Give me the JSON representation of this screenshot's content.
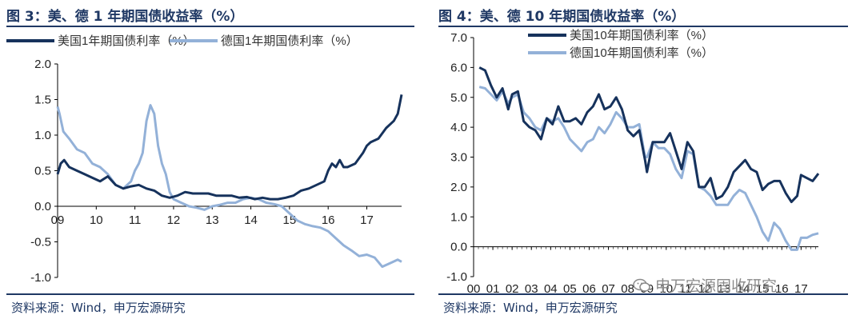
{
  "watermark": "申万宏源固收研究",
  "chart_data": [
    {
      "type": "line",
      "title": "图 3：美、德 1 年期国债收益率（%）",
      "source": "资料来源：Wind，申万宏源研究",
      "xlabel": "",
      "ylabel": "",
      "xlim": [
        2009,
        2017.9
      ],
      "ylim": [
        -1.0,
        2.0
      ],
      "x_ticks": [
        2009,
        2010,
        2011,
        2012,
        2013,
        2014,
        2015,
        2016,
        2017
      ],
      "x_tick_labels": [
        "09",
        "10",
        "11",
        "12",
        "13",
        "14",
        "15",
        "16",
        "17"
      ],
      "y_ticks": [
        -1.0,
        -0.5,
        0.0,
        0.5,
        1.0,
        1.5,
        2.0
      ],
      "y_tick_labels": [
        "-1.0",
        "-0.5",
        "0.0",
        "0.5",
        "1.0",
        "1.5",
        "2.0"
      ],
      "legend_position": "top",
      "series": [
        {
          "name": "美国1年期国债利率（%）",
          "color": "#16325c",
          "x": [
            2009.0,
            2009.08,
            2009.17,
            2009.3,
            2009.5,
            2009.7,
            2009.9,
            2010.1,
            2010.3,
            2010.5,
            2010.7,
            2010.9,
            2011.1,
            2011.3,
            2011.5,
            2011.7,
            2011.9,
            2012.1,
            2012.3,
            2012.5,
            2012.7,
            2012.9,
            2013.1,
            2013.3,
            2013.5,
            2013.7,
            2013.9,
            2014.1,
            2014.3,
            2014.5,
            2014.7,
            2014.9,
            2015.1,
            2015.3,
            2015.5,
            2015.7,
            2015.9,
            2016.0,
            2016.1,
            2016.2,
            2016.3,
            2016.4,
            2016.5,
            2016.7,
            2016.9,
            2017.0,
            2017.1,
            2017.3,
            2017.5,
            2017.7,
            2017.8,
            2017.9
          ],
          "values": [
            0.45,
            0.6,
            0.65,
            0.55,
            0.5,
            0.45,
            0.4,
            0.35,
            0.42,
            0.3,
            0.25,
            0.28,
            0.3,
            0.25,
            0.22,
            0.15,
            0.12,
            0.15,
            0.2,
            0.18,
            0.18,
            0.18,
            0.15,
            0.15,
            0.15,
            0.12,
            0.13,
            0.1,
            0.12,
            0.1,
            0.1,
            0.12,
            0.15,
            0.22,
            0.25,
            0.3,
            0.35,
            0.5,
            0.6,
            0.55,
            0.65,
            0.55,
            0.55,
            0.6,
            0.75,
            0.85,
            0.9,
            0.95,
            1.1,
            1.2,
            1.3,
            1.57
          ]
        },
        {
          "name": "德国1年期国债利率（%）",
          "color": "#93b1d8",
          "x": [
            2009.0,
            2009.05,
            2009.15,
            2009.3,
            2009.5,
            2009.7,
            2009.9,
            2010.1,
            2010.3,
            2010.5,
            2010.7,
            2010.9,
            2011.0,
            2011.1,
            2011.2,
            2011.3,
            2011.4,
            2011.5,
            2011.6,
            2011.7,
            2011.8,
            2011.9,
            2012.0,
            2012.2,
            2012.4,
            2012.6,
            2012.8,
            2013.0,
            2013.2,
            2013.4,
            2013.6,
            2013.8,
            2014.0,
            2014.2,
            2014.4,
            2014.6,
            2014.8,
            2015.0,
            2015.2,
            2015.4,
            2015.6,
            2015.8,
            2016.0,
            2016.2,
            2016.4,
            2016.6,
            2016.8,
            2017.0,
            2017.2,
            2017.4,
            2017.6,
            2017.8,
            2017.9
          ],
          "values": [
            1.4,
            1.3,
            1.05,
            0.95,
            0.8,
            0.75,
            0.6,
            0.55,
            0.45,
            0.3,
            0.25,
            0.35,
            0.5,
            0.6,
            0.75,
            1.2,
            1.42,
            1.3,
            0.85,
            0.6,
            0.45,
            0.2,
            0.1,
            0.05,
            0.0,
            -0.02,
            -0.05,
            0.0,
            0.02,
            0.05,
            0.05,
            0.1,
            0.12,
            0.1,
            0.05,
            0.03,
            0.0,
            -0.1,
            -0.2,
            -0.25,
            -0.28,
            -0.3,
            -0.35,
            -0.45,
            -0.55,
            -0.62,
            -0.7,
            -0.68,
            -0.72,
            -0.85,
            -0.8,
            -0.75,
            -0.78
          ]
        }
      ]
    },
    {
      "type": "line",
      "title": "图 4：美、德 10 年期国债收益率（%）",
      "source": "资料来源：Wind，申万宏源研究",
      "xlabel": "",
      "ylabel": "",
      "xlim": [
        2000,
        2017.9
      ],
      "ylim": [
        -1.0,
        7.0
      ],
      "x_ticks": [
        2000,
        2001,
        2002,
        2003,
        2004,
        2005,
        2006,
        2007,
        2008,
        2009,
        2010,
        2011,
        2012,
        2013,
        2014,
        2015,
        2016,
        2017
      ],
      "x_tick_labels": [
        "00",
        "01",
        "02",
        "03",
        "04",
        "05",
        "06",
        "07",
        "08",
        "09",
        "10",
        "11",
        "12",
        "13",
        "14",
        "15",
        "16",
        "17"
      ],
      "y_ticks": [
        -1.0,
        0.0,
        1.0,
        2.0,
        3.0,
        4.0,
        5.0,
        6.0,
        7.0
      ],
      "y_tick_labels": [
        "-1.0",
        "0.0",
        "1.0",
        "2.0",
        "3.0",
        "4.0",
        "5.0",
        "6.0",
        "7.0"
      ],
      "legend_position": "top",
      "series": [
        {
          "name": "美国10年期国债利率（%）",
          "color": "#16325c",
          "x": [
            2000.3,
            2000.6,
            2000.9,
            2001.2,
            2001.5,
            2001.8,
            2002.0,
            2002.3,
            2002.6,
            2002.9,
            2003.2,
            2003.5,
            2003.8,
            2004.1,
            2004.4,
            2004.7,
            2005.0,
            2005.3,
            2005.6,
            2005.9,
            2006.2,
            2006.5,
            2006.8,
            2007.1,
            2007.4,
            2007.7,
            2008.0,
            2008.3,
            2008.6,
            2008.9,
            2009.0,
            2009.3,
            2009.6,
            2009.9,
            2010.2,
            2010.5,
            2010.8,
            2011.1,
            2011.4,
            2011.7,
            2012.0,
            2012.3,
            2012.6,
            2012.9,
            2013.2,
            2013.5,
            2013.8,
            2014.1,
            2014.4,
            2014.7,
            2015.0,
            2015.3,
            2015.6,
            2015.9,
            2016.2,
            2016.5,
            2016.8,
            2017.0,
            2017.3,
            2017.6,
            2017.9
          ],
          "values": [
            6.0,
            5.9,
            5.4,
            5.0,
            5.3,
            4.6,
            5.1,
            5.2,
            4.2,
            4.0,
            3.9,
            3.6,
            4.3,
            4.1,
            4.7,
            4.2,
            4.2,
            4.3,
            4.1,
            4.5,
            4.7,
            5.1,
            4.6,
            4.7,
            5.0,
            4.6,
            3.9,
            3.7,
            3.9,
            2.9,
            2.5,
            3.5,
            3.5,
            3.5,
            3.8,
            3.2,
            2.6,
            3.5,
            3.2,
            2.0,
            2.0,
            2.3,
            1.6,
            1.7,
            2.0,
            2.5,
            2.7,
            2.9,
            2.6,
            2.5,
            1.9,
            2.1,
            2.2,
            2.2,
            1.8,
            1.5,
            1.7,
            2.4,
            2.3,
            2.2,
            2.45
          ]
        },
        {
          "name": "德国10年期国债利率（%）",
          "color": "#93b1d8",
          "x": [
            2000.3,
            2000.6,
            2000.9,
            2001.2,
            2001.5,
            2001.8,
            2002.0,
            2002.3,
            2002.6,
            2002.9,
            2003.2,
            2003.5,
            2003.8,
            2004.1,
            2004.4,
            2004.7,
            2005.0,
            2005.3,
            2005.6,
            2005.9,
            2006.2,
            2006.5,
            2006.8,
            2007.1,
            2007.4,
            2007.7,
            2008.0,
            2008.3,
            2008.6,
            2008.9,
            2009.0,
            2009.3,
            2009.6,
            2009.9,
            2010.2,
            2010.5,
            2010.8,
            2011.1,
            2011.4,
            2011.7,
            2012.0,
            2012.3,
            2012.6,
            2012.9,
            2013.2,
            2013.5,
            2013.8,
            2014.1,
            2014.4,
            2014.7,
            2015.0,
            2015.3,
            2015.6,
            2015.9,
            2016.2,
            2016.5,
            2016.8,
            2017.0,
            2017.3,
            2017.6,
            2017.9
          ],
          "values": [
            5.35,
            5.3,
            5.1,
            4.9,
            5.2,
            4.8,
            5.0,
            5.1,
            4.5,
            4.3,
            4.0,
            3.9,
            4.3,
            4.2,
            4.3,
            4.0,
            3.6,
            3.4,
            3.2,
            3.5,
            3.6,
            4.0,
            3.8,
            4.1,
            4.5,
            4.3,
            4.0,
            4.0,
            4.1,
            3.0,
            3.0,
            3.5,
            3.3,
            3.3,
            3.1,
            2.6,
            2.3,
            3.2,
            3.1,
            2.0,
            1.9,
            1.7,
            1.4,
            1.4,
            1.4,
            1.7,
            1.9,
            1.8,
            1.4,
            1.0,
            0.5,
            0.2,
            0.8,
            0.6,
            0.2,
            -0.1,
            -0.1,
            0.3,
            0.3,
            0.4,
            0.45
          ]
        }
      ]
    }
  ]
}
